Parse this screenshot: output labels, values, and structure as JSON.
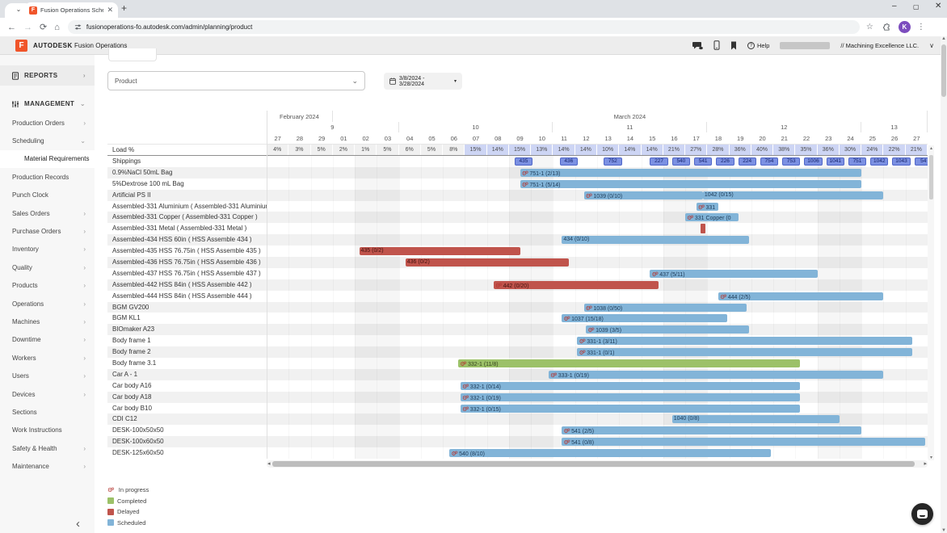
{
  "colors": {
    "scheduled": "#82b4d8",
    "completed": "#9cc168",
    "delayed": "#c0544c",
    "shipping_chip": "#7b90e2",
    "load_highlight": "#cdd5f4",
    "brand_orange": "#f0552a"
  },
  "browser": {
    "tab_title": "Fusion Operations Scheduling",
    "favicon_letter": "F",
    "new_tab": "+",
    "url": "fusionoperations-fo.autodesk.com/admin/planning/product",
    "avatar_letter": "K"
  },
  "app_header": {
    "logo_letter": "F",
    "brand_bold": "AUTODESK",
    "brand_product": "Fusion Operations",
    "help_label": "Help",
    "account": "// Machining Excellence LLC."
  },
  "sidebar": {
    "sections": [
      {
        "label": "REPORTS"
      },
      {
        "label": "MANAGEMENT"
      }
    ],
    "items": [
      {
        "label": "Production Orders",
        "chev": "r"
      },
      {
        "label": "Scheduling",
        "chev": "d"
      },
      {
        "label": "Material Requirements",
        "sub": true,
        "selected": true
      },
      {
        "label": "Production Records"
      },
      {
        "label": "Punch Clock"
      },
      {
        "label": "Sales Orders",
        "chev": "r"
      },
      {
        "label": "Purchase Orders",
        "chev": "r"
      },
      {
        "label": "Inventory",
        "chev": "r"
      },
      {
        "label": "Quality",
        "chev": "r"
      },
      {
        "label": "Products",
        "chev": "r"
      },
      {
        "label": "Operations",
        "chev": "r"
      },
      {
        "label": "Machines",
        "chev": "r"
      },
      {
        "label": "Downtime",
        "chev": "r"
      },
      {
        "label": "Workers",
        "chev": "r"
      },
      {
        "label": "Users",
        "chev": "r"
      },
      {
        "label": "Devices",
        "chev": "r"
      },
      {
        "label": "Sections"
      },
      {
        "label": "Work Instructions"
      },
      {
        "label": "Safety & Health",
        "chev": "r"
      },
      {
        "label": "Maintenance",
        "chev": "r"
      }
    ]
  },
  "filters": {
    "product_label": "Product",
    "date_range": "3/8/2024 - 3/28/2024"
  },
  "gantt": {
    "months": [
      {
        "label": "February 2024",
        "s": 0,
        "e": 3
      },
      {
        "label": "March 2024",
        "s": 3,
        "e": 30
      }
    ],
    "weeks": [
      {
        "label": "9",
        "s": 0,
        "e": 6
      },
      {
        "label": "10",
        "s": 6,
        "e": 13
      },
      {
        "label": "11",
        "s": 13,
        "e": 20
      },
      {
        "label": "12",
        "s": 20,
        "e": 27
      },
      {
        "label": "13",
        "s": 27,
        "e": 30
      }
    ],
    "days": [
      "27",
      "28",
      "29",
      "01",
      "02",
      "03",
      "04",
      "05",
      "06",
      "07",
      "08",
      "09",
      "10",
      "11",
      "12",
      "13",
      "14",
      "15",
      "16",
      "17",
      "18",
      "19",
      "20",
      "21",
      "22",
      "23",
      "24",
      "25",
      "26",
      "27"
    ],
    "load_label": "Load %",
    "load_values": [
      4,
      3,
      5,
      2,
      1,
      5,
      6,
      5,
      8,
      15,
      14,
      15,
      13,
      14,
      14,
      10,
      14,
      14,
      21,
      27,
      28,
      36,
      40,
      38,
      35,
      36,
      30,
      24,
      22,
      21
    ],
    "load_highlight_min": 10,
    "weekend_cols": [
      [
        4,
        6
      ],
      [
        11,
        13
      ],
      [
        18,
        20
      ],
      [
        25,
        27
      ]
    ],
    "rows": [
      {
        "label": "Shippings",
        "shipments": [
          {
            "t": "435",
            "d": 11.25
          },
          {
            "t": "436",
            "d": 13.3
          },
          {
            "t": "752",
            "d": 15.3
          },
          {
            "t": "227",
            "d": 17.4
          },
          {
            "t": "540",
            "d": 18.4
          },
          {
            "t": "541",
            "d": 19.4
          },
          {
            "t": "226",
            "d": 20.4
          },
          {
            "t": "224",
            "d": 21.4
          },
          {
            "t": "754",
            "d": 22.4
          },
          {
            "t": "753",
            "d": 23.4
          },
          {
            "t": "1006",
            "d": 24.4
          },
          {
            "t": "1041",
            "d": 25.4
          },
          {
            "t": "751",
            "d": 26.4
          },
          {
            "t": "1042",
            "d": 27.4
          },
          {
            "t": "1043",
            "d": 28.4
          },
          {
            "t": "54",
            "d": 29.4
          }
        ]
      },
      {
        "label": "0.9%NaCl 50mL Bag",
        "bars": [
          {
            "t": "751-1 (2/13)",
            "s": 11.5,
            "e": 27.0,
            "c": "scheduled",
            "icon": true
          }
        ]
      },
      {
        "label": "5%Dextrose 100 mL Bag",
        "bars": [
          {
            "t": "751-1 (5/14)",
            "s": 11.5,
            "e": 27.0,
            "c": "scheduled",
            "icon": true
          }
        ]
      },
      {
        "label": "Artificial PS II",
        "bars": [
          {
            "t": "1039 (0/10)",
            "s": 14.4,
            "e": 19.8,
            "c": "scheduled",
            "icon": true
          },
          {
            "t": "1042 (0/15)",
            "s": 19.8,
            "e": 28.0,
            "c": "scheduled",
            "icon": false
          }
        ]
      },
      {
        "label": "Assembled-331 Aluminium ( Assembled-331 Aluminium )",
        "bars": [
          {
            "t": "331",
            "s": 19.5,
            "e": 20.5,
            "c": "scheduled",
            "icon": true
          }
        ]
      },
      {
        "label": "Assembled-331 Copper ( Assembled-331 Copper )",
        "bars": [
          {
            "t": "331 Copper (0",
            "s": 19.0,
            "e": 21.4,
            "c": "scheduled",
            "icon": true
          }
        ]
      },
      {
        "label": "Assembled-331 Metal ( Assembled-331 Metal )",
        "bars": [
          {
            "t": "",
            "s": 19.7,
            "e": 19.9,
            "c": "delayed",
            "icon": false,
            "tall": true
          }
        ]
      },
      {
        "label": "Assembled-434 HSS 60in ( HSS Assemble 434 )",
        "bars": [
          {
            "t": "434 (0/10)",
            "s": 13.4,
            "e": 21.9,
            "c": "scheduled",
            "icon": false
          }
        ]
      },
      {
        "label": "Assembled-435 HSS 76.75in ( HSS Assemble 435 )",
        "bars": [
          {
            "t": "435 (0/2)",
            "s": 4.2,
            "e": 11.5,
            "c": "delayed",
            "icon": false
          }
        ]
      },
      {
        "label": "Assembled-436 HSS 76.75in ( HSS Assemble 436 )",
        "bars": [
          {
            "t": "436 (0/2)",
            "s": 6.3,
            "e": 13.7,
            "c": "delayed",
            "icon": false
          }
        ]
      },
      {
        "label": "Assembled-437 HSS 76.75in ( HSS Assemble 437 )",
        "bars": [
          {
            "t": "437 (5/11)",
            "s": 17.4,
            "e": 25.0,
            "c": "scheduled",
            "icon": true
          }
        ]
      },
      {
        "label": "Assembled-442 HSS 84in ( HSS Assemble 442 )",
        "bars": [
          {
            "t": "442 (0/20)",
            "s": 10.3,
            "e": 17.8,
            "c": "delayed",
            "icon": true
          }
        ]
      },
      {
        "label": "Assembled-444 HSS 84in ( HSS Assemble 444 )",
        "bars": [
          {
            "t": "444 (2/5)",
            "s": 20.5,
            "e": 28.0,
            "c": "scheduled",
            "icon": true
          }
        ]
      },
      {
        "label": "BGM GV200",
        "bars": [
          {
            "t": "1038 (0/50)",
            "s": 14.4,
            "e": 21.8,
            "c": "scheduled",
            "icon": true
          }
        ]
      },
      {
        "label": "BGM KL1",
        "bars": [
          {
            "t": "1037 (15/18)",
            "s": 13.4,
            "e": 20.9,
            "c": "scheduled",
            "icon": true
          }
        ]
      },
      {
        "label": "BIOmaker A23",
        "bars": [
          {
            "t": "1039 (3/5)",
            "s": 14.5,
            "e": 21.9,
            "c": "scheduled",
            "icon": true
          }
        ]
      },
      {
        "label": "Body frame 1",
        "bars": [
          {
            "t": "331-1 (3/11)",
            "s": 14.1,
            "e": 29.3,
            "c": "scheduled",
            "icon": true
          }
        ]
      },
      {
        "label": "Body frame 2",
        "bars": [
          {
            "t": "331-1 (0/1)",
            "s": 14.1,
            "e": 29.3,
            "c": "scheduled",
            "icon": true
          }
        ]
      },
      {
        "label": "Body frame 3.1",
        "bars": [
          {
            "t": "332-1 (11/8)",
            "s": 8.7,
            "e": 24.2,
            "c": "completed",
            "icon": true
          }
        ]
      },
      {
        "label": "Car A - 1",
        "bars": [
          {
            "t": "333-1 (0/19)",
            "s": 12.8,
            "e": 28.0,
            "c": "scheduled",
            "icon": true
          }
        ]
      },
      {
        "label": "Car body A16",
        "bars": [
          {
            "t": "332-1 (0/14)",
            "s": 8.8,
            "e": 24.2,
            "c": "scheduled",
            "icon": true
          }
        ]
      },
      {
        "label": "Car body A18",
        "bars": [
          {
            "t": "332-1 (0/19)",
            "s": 8.8,
            "e": 24.2,
            "c": "scheduled",
            "icon": true
          }
        ]
      },
      {
        "label": "Car body B10",
        "bars": [
          {
            "t": "332-1 (0/15)",
            "s": 8.8,
            "e": 24.2,
            "c": "scheduled",
            "icon": true
          }
        ]
      },
      {
        "label": "CDI C12",
        "bars": [
          {
            "t": "1040 (0/8)",
            "s": 18.4,
            "e": 26.0,
            "c": "scheduled",
            "icon": false
          }
        ]
      },
      {
        "label": "DESK-100x50x50",
        "bars": [
          {
            "t": "541 (2/5)",
            "s": 13.4,
            "e": 27.0,
            "c": "scheduled",
            "icon": true
          }
        ]
      },
      {
        "label": "DESK-100x60x50",
        "bars": [
          {
            "t": "541 (0/8)",
            "s": 13.4,
            "e": 29.9,
            "c": "scheduled",
            "icon": true
          }
        ]
      },
      {
        "label": "DESK-125x60x50",
        "bars": [
          {
            "t": "540 (8/10)",
            "s": 8.3,
            "e": 22.9,
            "c": "scheduled",
            "icon": true
          }
        ]
      }
    ]
  },
  "legend": [
    {
      "label": "In progress",
      "kind": "gears"
    },
    {
      "label": "Completed",
      "kind": "swatch",
      "color": "#9cc168"
    },
    {
      "label": "Delayed",
      "kind": "swatch",
      "color": "#c0544c"
    },
    {
      "label": "Scheduled",
      "kind": "swatch",
      "color": "#82b4d8"
    }
  ]
}
